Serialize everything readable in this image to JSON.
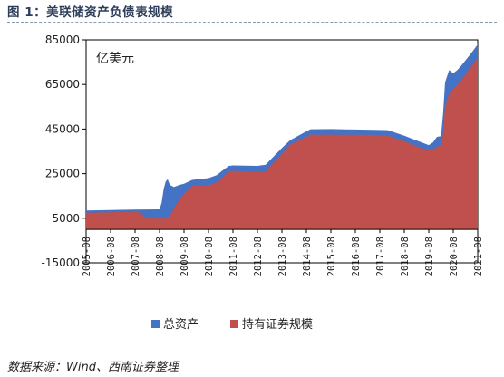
{
  "header": {
    "title": "图 1：美联储资产负债表规模"
  },
  "footer": {
    "source": "数据来源：Wind、西南证券整理"
  },
  "chart_data": {
    "type": "area",
    "title": "",
    "unit_label": "亿美元",
    "xlabel": "",
    "ylabel": "",
    "ylim": [
      -15000,
      85000
    ],
    "yticks": [
      -15000,
      5000,
      25000,
      45000,
      65000,
      85000
    ],
    "ytick_labels": [
      "-15000",
      "5000",
      "25000",
      "45000",
      "65000",
      "85000"
    ],
    "xlim": [
      "2005-08",
      "2021-08"
    ],
    "xticks": [
      "2005-08",
      "2006-08",
      "2007-08",
      "2008-08",
      "2009-08",
      "2010-08",
      "2011-08",
      "2012-08",
      "2013-08",
      "2014-08",
      "2015-08",
      "2016-08",
      "2017-08",
      "2018-08",
      "2019-08",
      "2020-08",
      "2021-08"
    ],
    "grid": false,
    "legend_position": "bottom",
    "colors": {
      "total_assets": "#4472c4",
      "securities": "#c0504d"
    },
    "series": [
      {
        "name": "总资产",
        "color": "#4472c4",
        "points": [
          [
            "2005-08",
            8500
          ],
          [
            "2006-08",
            8700
          ],
          [
            "2007-08",
            8900
          ],
          [
            "2008-08",
            9000
          ],
          [
            "2008-09",
            12000
          ],
          [
            "2008-10",
            18000
          ],
          [
            "2008-11",
            21500
          ],
          [
            "2008-12",
            22500
          ],
          [
            "2009-01",
            20000
          ],
          [
            "2009-03",
            19000
          ],
          [
            "2009-06",
            20000
          ],
          [
            "2009-08",
            20500
          ],
          [
            "2009-12",
            22200
          ],
          [
            "2010-08",
            23000
          ],
          [
            "2010-12",
            24300
          ],
          [
            "2011-03",
            26500
          ],
          [
            "2011-06",
            28500
          ],
          [
            "2011-08",
            28700
          ],
          [
            "2012-08",
            28500
          ],
          [
            "2012-12",
            29000
          ],
          [
            "2013-08",
            36500
          ],
          [
            "2013-12",
            40000
          ],
          [
            "2014-08",
            44000
          ],
          [
            "2014-10",
            44900
          ],
          [
            "2015-08",
            45000
          ],
          [
            "2016-08",
            44800
          ],
          [
            "2017-08",
            44600
          ],
          [
            "2017-12",
            44500
          ],
          [
            "2018-08",
            42000
          ],
          [
            "2019-03",
            39500
          ],
          [
            "2019-08",
            37800
          ],
          [
            "2019-10",
            39000
          ],
          [
            "2019-12",
            41500
          ],
          [
            "2020-02",
            41800
          ],
          [
            "2020-03",
            52000
          ],
          [
            "2020-04",
            66000
          ],
          [
            "2020-06",
            71500
          ],
          [
            "2020-08",
            70000
          ],
          [
            "2020-10",
            71500
          ],
          [
            "2020-12",
            73500
          ],
          [
            "2021-03",
            77000
          ],
          [
            "2021-06",
            80500
          ],
          [
            "2021-08",
            83000
          ]
        ]
      },
      {
        "name": "持有证券规模",
        "color": "#c0504d",
        "points": [
          [
            "2005-08",
            7500
          ],
          [
            "2006-08",
            7700
          ],
          [
            "2007-08",
            7800
          ],
          [
            "2007-11",
            7500
          ],
          [
            "2008-01",
            5000
          ],
          [
            "2008-08",
            4800
          ],
          [
            "2008-12",
            4900
          ],
          [
            "2009-01",
            6000
          ],
          [
            "2009-04",
            11000
          ],
          [
            "2009-08",
            16000
          ],
          [
            "2009-12",
            19500
          ],
          [
            "2010-08",
            19800
          ],
          [
            "2010-12",
            21000
          ],
          [
            "2011-03",
            23500
          ],
          [
            "2011-06",
            26000
          ],
          [
            "2011-08",
            26200
          ],
          [
            "2012-08",
            25800
          ],
          [
            "2012-12",
            26000
          ],
          [
            "2013-08",
            34000
          ],
          [
            "2013-12",
            38000
          ],
          [
            "2014-08",
            41500
          ],
          [
            "2014-10",
            42500
          ],
          [
            "2015-08",
            42500
          ],
          [
            "2016-08",
            42400
          ],
          [
            "2017-08",
            42300
          ],
          [
            "2017-12",
            42000
          ],
          [
            "2018-08",
            39500
          ],
          [
            "2019-03",
            37000
          ],
          [
            "2019-08",
            35500
          ],
          [
            "2019-10",
            36000
          ],
          [
            "2019-12",
            37000
          ],
          [
            "2020-02",
            38000
          ],
          [
            "2020-03",
            43000
          ],
          [
            "2020-04",
            55000
          ],
          [
            "2020-06",
            61000
          ],
          [
            "2020-08",
            63000
          ],
          [
            "2020-12",
            67000
          ],
          [
            "2021-03",
            71000
          ],
          [
            "2021-06",
            74500
          ],
          [
            "2021-08",
            77000
          ]
        ]
      }
    ]
  }
}
